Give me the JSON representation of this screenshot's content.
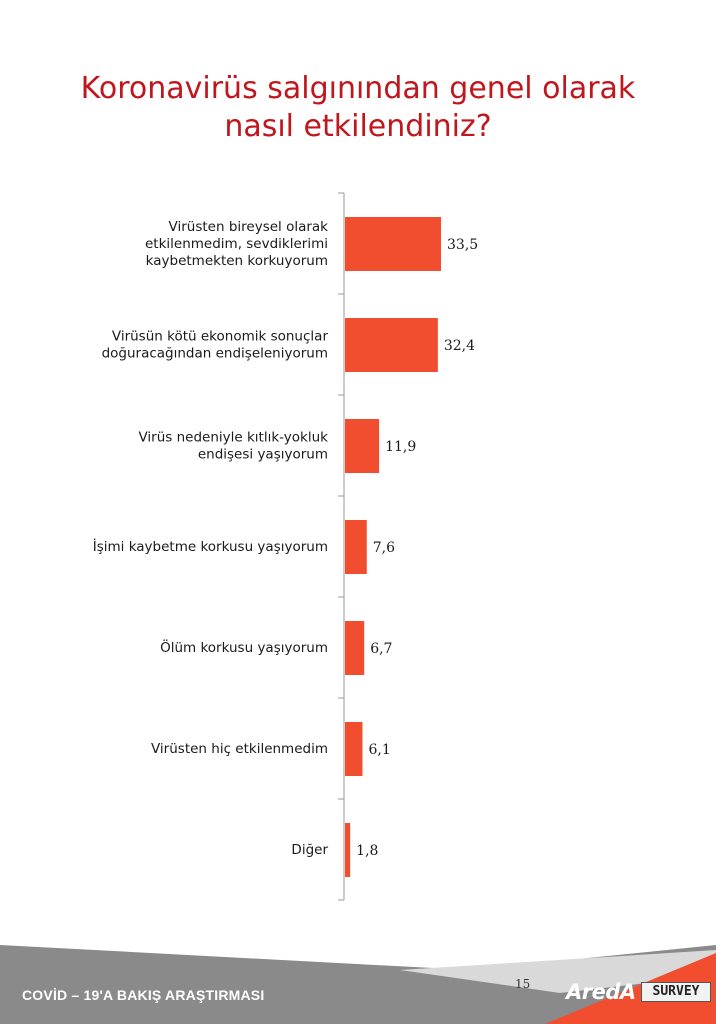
{
  "title_lines": [
    "Koronavirüs salgınından genel olarak",
    "nasıl etkilendiniz?"
  ],
  "chart_data": {
    "type": "bar",
    "orientation": "horizontal",
    "categories": [
      [
        "Virüsten bireysel olarak",
        "etkilenmedim, sevdiklerimi",
        "kaybetmekten korkuyorum"
      ],
      [
        "Virüsün kötü ekonomik sonuçlar",
        "doğuracağından endişeleniyorum"
      ],
      [
        "Virüs nedeniyle kıtlık-yokluk",
        "endişesi yaşıyorum"
      ],
      [
        "İşimi kaybetme korkusu yaşıyorum"
      ],
      [
        "Ölüm korkusu yaşıyorum"
      ],
      [
        "Virüsten hiç etkilenmedim"
      ],
      [
        "Diğer"
      ]
    ],
    "values": [
      33.5,
      32.4,
      11.9,
      7.6,
      6.7,
      6.1,
      1.8
    ],
    "value_labels": [
      "33,5",
      "32,4",
      "11,9",
      "7,6",
      "6,7",
      "6,1",
      "1,8"
    ],
    "bar_color": "#f04e2f",
    "grid": false
  },
  "footer": {
    "title": "COVİD – 19'A  BAKIŞ ARAŞTIRMASI",
    "page_number": "15",
    "brand": "AredA",
    "brand_suffix": "SURVEY"
  }
}
